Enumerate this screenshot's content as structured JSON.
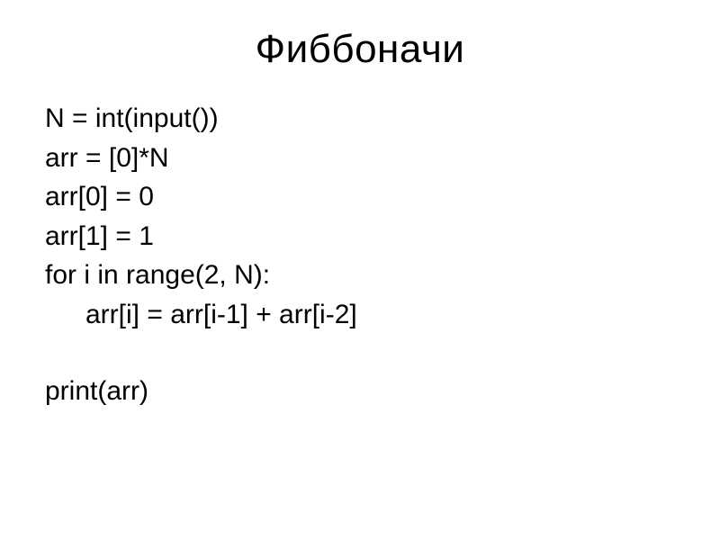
{
  "slide": {
    "title": "Фиббоначи",
    "code_lines": [
      "N = int(input())",
      "arr = [0]*N",
      "arr[0] = 0",
      "arr[1] = 1",
      "for i in range(2, N):",
      "    arr[i] = arr[i-1] + arr[i-2]",
      "",
      "print(arr)"
    ],
    "title_fontsize": 44,
    "code_fontsize": 30,
    "text_color": "#000000",
    "background_color": "#ffffff",
    "indent_width": 45
  }
}
